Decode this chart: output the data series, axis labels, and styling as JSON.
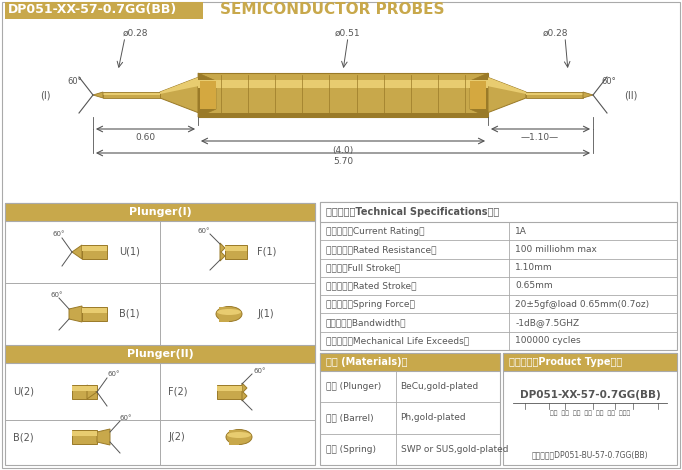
{
  "title_box_text": "DP051-XX-57-0.7GG(BB)",
  "title_probe_text": "SEMICONDUCTOR PROBES",
  "gold_color": "#C8A84B",
  "gold_dark": "#9A7A28",
  "gold_light": "#E8CC70",
  "gold_mid": "#D4A840",
  "dim_color": "#555555",
  "border_color": "#AAAAAA",
  "bg_color": "#FFFFFF",
  "dim_phi028_left": "ø0.28",
  "dim_phi051": "ø0.51",
  "dim_phi028_right": "ø0.28",
  "dim_060": "0.60",
  "dim_40": "(4.0)",
  "dim_110": "—1.10—",
  "dim_570": "5.70",
  "label_I": "(I)",
  "label_II": "(II)",
  "angle_60": "60°",
  "tech_header": "技术要求（Technical Specifications）：",
  "spec_rows": [
    [
      "额定电流（Current Rating）",
      "1A"
    ],
    [
      "额定电阻（Rated Resistance）",
      "100 milliohm max"
    ],
    [
      "满行程（Full Stroke）",
      "1.10mm"
    ],
    [
      "额定行程（Rated Stroke）",
      "0.65mm"
    ],
    [
      "额定弹力（Spring Force）",
      "20±5gf@load 0.65mm(0.7oz)"
    ],
    [
      "频率带宽（Bandwidth）",
      "-1dB@7.5GHZ"
    ],
    [
      "测试寿命（Mechanical Life Exceeds）",
      "100000 cycles"
    ]
  ],
  "material_header": "材质 (Materials)：",
  "material_rows": [
    [
      "针头 (Plunger)",
      "BeCu,gold-plated"
    ],
    [
      "针管 (Barrel)",
      "Ph,gold-plated"
    ],
    [
      "弹簧 (Spring)",
      "SWP or SUS,gold-plated"
    ]
  ],
  "product_header": "成品型号（Product Type）：",
  "product_code": "DP051-XX-57-0.7GG(BB)",
  "product_labels": "系列  规格  头型  总长  弹力  镖金  针头模",
  "order_example": "订购举例：DP051-BU-57-0.7GG(BB)",
  "plunger1_header": "Plunger(I)",
  "plunger2_header": "Plunger(II)"
}
